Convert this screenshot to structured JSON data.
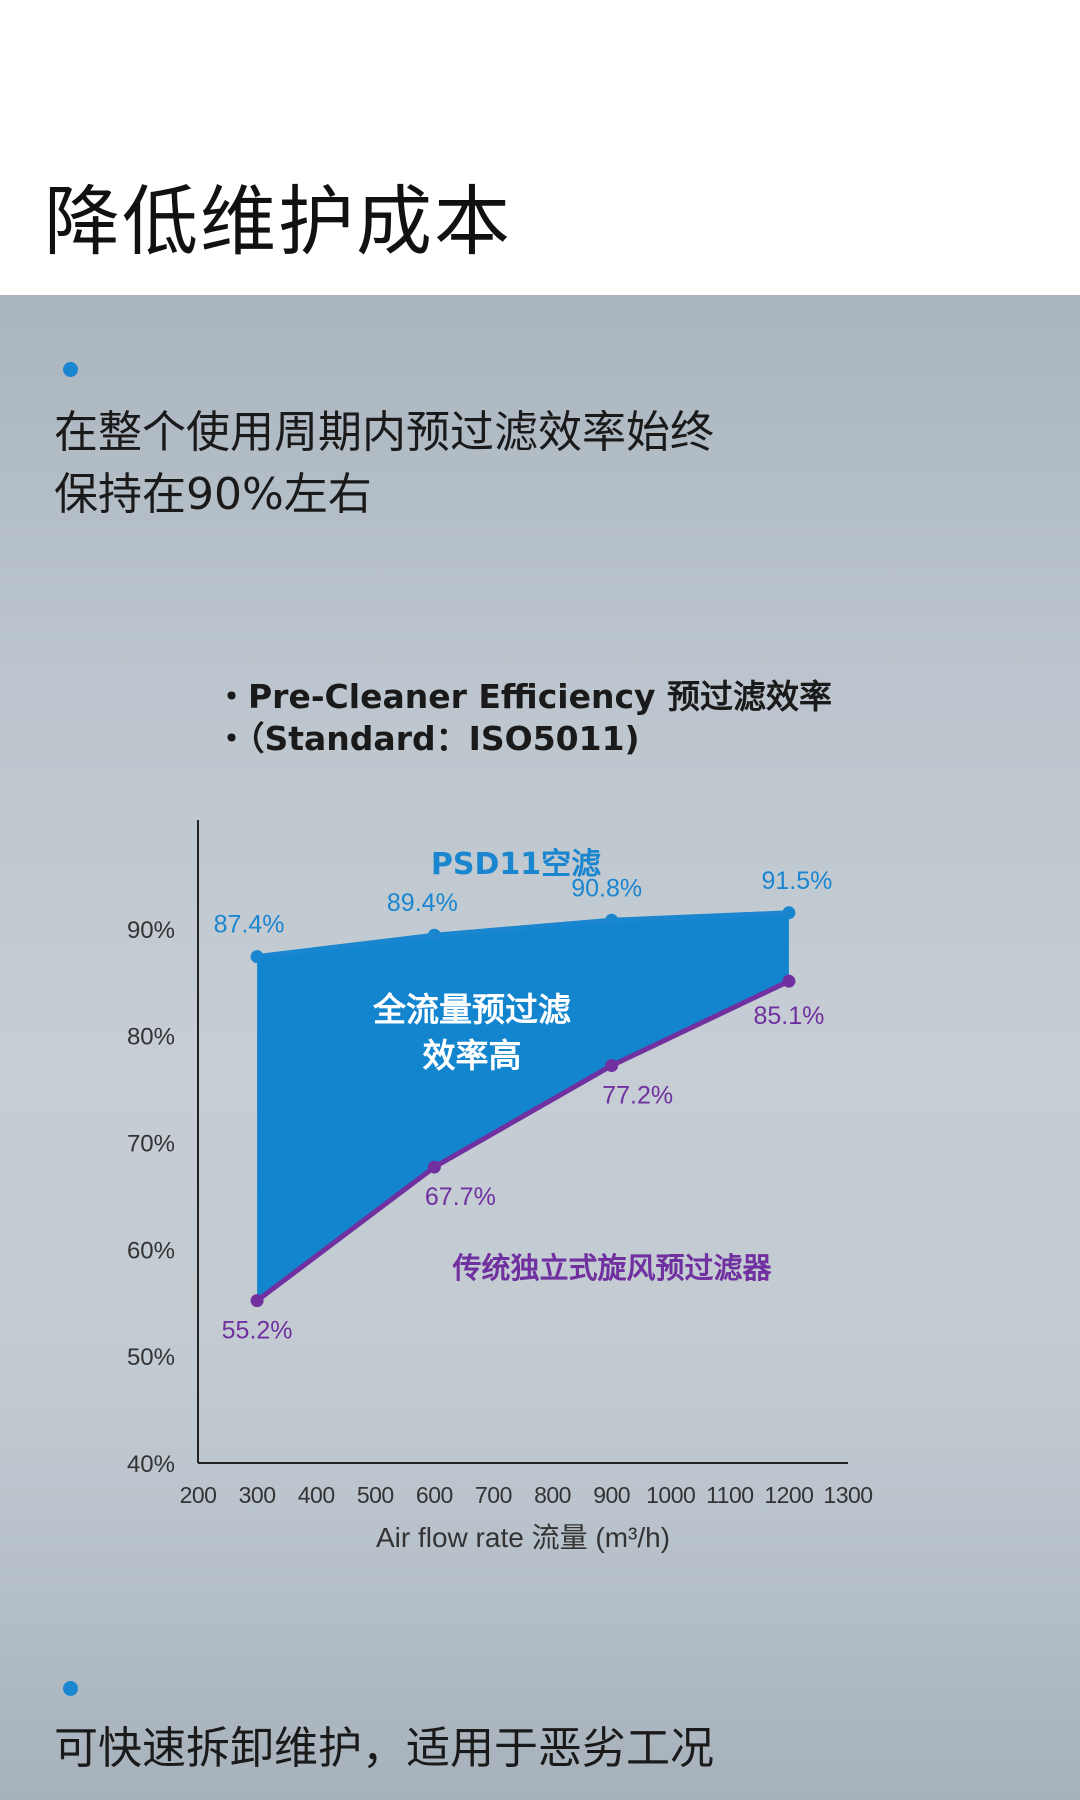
{
  "page": {
    "title": "降低维护成本"
  },
  "points": [
    {
      "text": "在整个使用周期内预过滤效率始终\n保持在90%左右"
    },
    {
      "text": "可快速拆卸维护，适用于恶劣工况"
    }
  ],
  "chart_heading": {
    "line1": "・Pre-Cleaner Efficiency 预过滤效率",
    "line2": "・（Standard：ISO5011)"
  },
  "chart_data": {
    "type": "line",
    "x": [
      300,
      600,
      900,
      1200
    ],
    "series": [
      {
        "name": "PSD11空滤",
        "values": [
          87.4,
          89.4,
          90.8,
          91.5
        ],
        "labels": [
          "87.4%",
          "89.4%",
          "90.8%",
          "91.5%"
        ],
        "color": "#1a86d0"
      },
      {
        "name": "传统独立式旋风预过滤器",
        "values": [
          55.2,
          67.7,
          77.2,
          85.1
        ],
        "labels": [
          "55.2%",
          "67.7%",
          "77.2%",
          "85.1%"
        ],
        "color": "#7030a0"
      }
    ],
    "fill_label": "全流量预过滤\n效率高",
    "fill_color": "#1385cf",
    "xlabel": "Air flow rate 流量 (m³/h)",
    "xlim": [
      200,
      1300
    ],
    "ylim": [
      40,
      100
    ],
    "xticks": [
      200,
      300,
      400,
      500,
      600,
      700,
      800,
      900,
      1000,
      1100,
      1200,
      1300
    ],
    "xtick_labels": [
      "200",
      "300",
      "400",
      "500",
      "600",
      "700",
      "800",
      "900",
      "1000",
      "1100",
      "1200",
      "1300"
    ],
    "yticks": [
      40,
      50,
      60,
      70,
      80,
      90
    ],
    "ytick_labels": [
      "40%",
      "50%",
      "60%",
      "70%",
      "80%",
      "90%"
    ],
    "grid": false,
    "legend": "none"
  },
  "colors": {
    "accent": "#1a86d0",
    "series_blue": "#1a86d0",
    "series_purple": "#7030a0"
  }
}
